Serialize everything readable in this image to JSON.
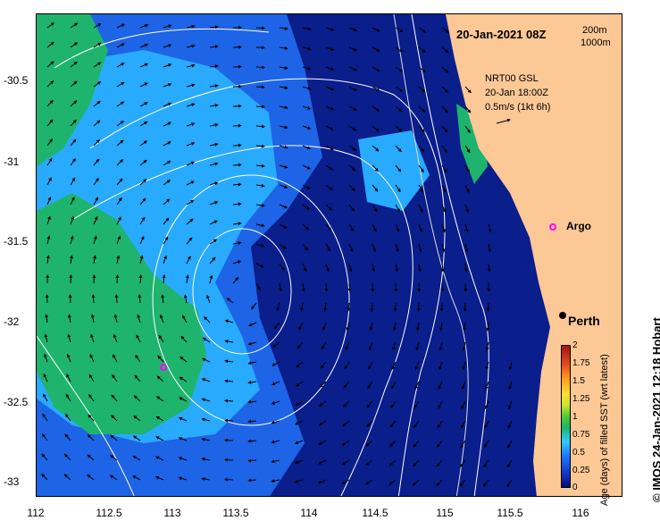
{
  "title": "20-Jan-2021 08Z",
  "depth_legend": {
    "contour_200": "200m",
    "contour_1000": "1000m"
  },
  "current_info": {
    "line1": "NRT00 GSL",
    "line2": "20-Jan 18:00Z",
    "line3": "0.5m/s (1kt 6h)"
  },
  "places": {
    "argo": "Argo",
    "perth": "Perth"
  },
  "axes": {
    "y_ticks": [
      "-30.5",
      "-31",
      "-31.5",
      "-32",
      "-32.5",
      "-33"
    ],
    "x_ticks": [
      "112",
      "112.5",
      "113",
      "113.5",
      "114",
      "114.5",
      "115",
      "115.5",
      "116"
    ]
  },
  "colorbar": {
    "title": "Age (days) of filled SST (wrt latest)",
    "ticks": [
      "2",
      "1.75",
      "1.5",
      "1.25",
      "1",
      "0.75",
      "0.5",
      "0.25",
      "0"
    ]
  },
  "credit": "© IMOS 24-Jan-2021 12:18 Hobart",
  "colors": {
    "land": "#fcc896",
    "deep_blue": "#0a1e8c",
    "mid_blue": "#1e64e6",
    "light_blue": "#28aaff",
    "green": "#1eb46e",
    "argo_marker": "#ff00ff"
  }
}
